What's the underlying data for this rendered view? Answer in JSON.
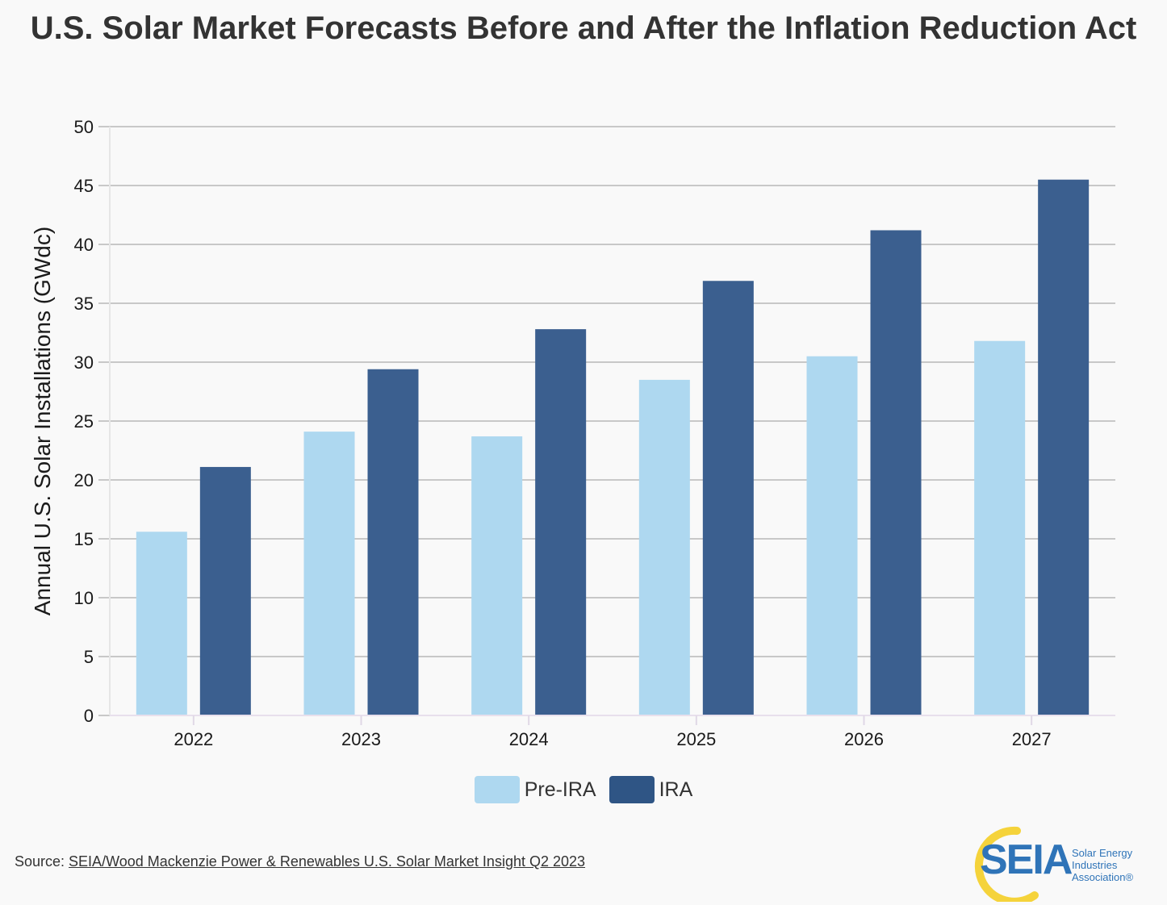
{
  "chart_data": {
    "type": "bar",
    "title": "U.S. Solar Market Forecasts Before and After the Inflation Reduction Act",
    "xlabel": "",
    "ylabel": "Annual U.S. Solar Installations (GWdc)",
    "categories": [
      "2022",
      "2023",
      "2024",
      "2025",
      "2026",
      "2027"
    ],
    "series": [
      {
        "name": "Pre-IRA",
        "color": "#aed8f0",
        "values": [
          15.6,
          24.1,
          23.7,
          28.5,
          30.5,
          31.8
        ]
      },
      {
        "name": "IRA",
        "color": "#3b5f8f",
        "values": [
          21.1,
          29.4,
          32.8,
          36.9,
          41.2,
          45.5
        ]
      }
    ],
    "ylim": [
      0,
      50
    ],
    "yticks": [
      0,
      5,
      10,
      15,
      20,
      25,
      30,
      35,
      40,
      45,
      50
    ],
    "grid": true,
    "legend_position": "bottom-center"
  },
  "source": {
    "prefix": "Source: ",
    "link_text": "SEIA/Wood Mackenzie Power & Renewables U.S. Solar Market Insight Q2 2023"
  },
  "logo": {
    "wordmark": "SEIA",
    "line1": "Solar Energy",
    "line2": "Industries",
    "line3": "Association®",
    "colors": {
      "ring": "#f5d33b",
      "text": "#2f74b8"
    }
  }
}
